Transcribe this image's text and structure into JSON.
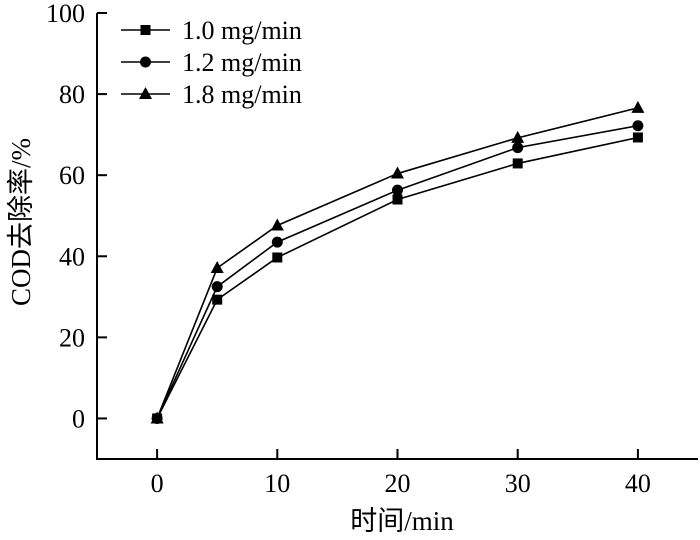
{
  "chart_data": {
    "type": "line",
    "xlabel": "时间/min",
    "ylabel": "COD去除率/%",
    "xlim": [
      -5,
      45
    ],
    "ylim": [
      -10,
      100
    ],
    "xticks": [
      0,
      10,
      20,
      30,
      40
    ],
    "yticks": [
      0,
      20,
      40,
      60,
      80,
      100
    ],
    "x": [
      0,
      5,
      10,
      20,
      30,
      40
    ],
    "legend_position": "top-left",
    "grid": false,
    "series": [
      {
        "name": "1.0 mg/min",
        "marker": "square",
        "values": [
          0,
          29.3,
          39.7,
          54.0,
          62.9,
          69.3
        ]
      },
      {
        "name": "1.2 mg/min",
        "marker": "circle",
        "values": [
          0,
          32.5,
          43.5,
          56.3,
          66.8,
          72.2
        ]
      },
      {
        "name": "1.8 mg/min",
        "marker": "triangle",
        "values": [
          0,
          37.1,
          47.6,
          60.4,
          69.2,
          76.6
        ]
      }
    ]
  }
}
